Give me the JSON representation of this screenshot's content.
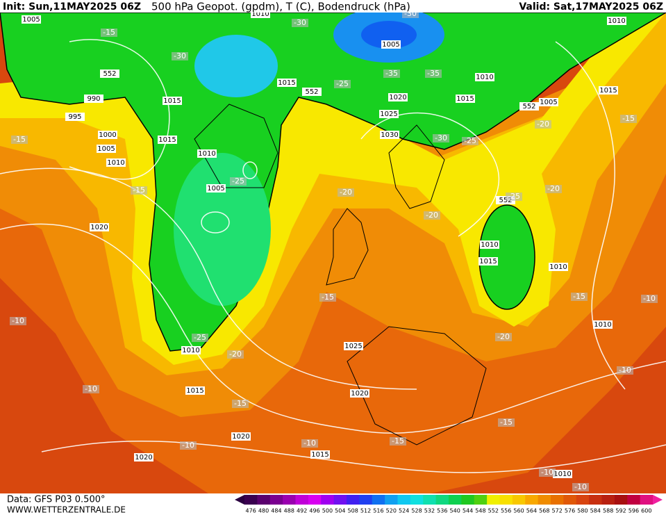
{
  "header": {
    "init": "Init: Sun,11MAY2025 06Z",
    "title": "500 hPa Geopot. (gpdm), T (C), Bodendruck (hPa)",
    "valid": "Valid: Sat,17MAY2025 06Z"
  },
  "footer": {
    "data": "Data: GFS P03 0.500°",
    "site": "WWW.WETTERZENTRALE.DE"
  },
  "colorbar": {
    "labels": [
      476,
      480,
      484,
      488,
      492,
      496,
      500,
      504,
      508,
      512,
      516,
      520,
      524,
      528,
      532,
      536,
      540,
      544,
      548,
      552,
      556,
      560,
      564,
      568,
      572,
      576,
      580,
      584,
      588,
      592,
      596,
      600
    ],
    "colors": [
      "#3a0050",
      "#5a006e",
      "#7a0090",
      "#9a00b0",
      "#c000d8",
      "#d800f0",
      "#a000f0",
      "#7010f0",
      "#4020f0",
      "#2040f0",
      "#1070f0",
      "#10a0f0",
      "#10c8f0",
      "#10e0e0",
      "#10e0b0",
      "#10d880",
      "#10d050",
      "#20c820",
      "#50d010",
      "#f0f000",
      "#f8e000",
      "#f8c800",
      "#f8a800",
      "#f08c00",
      "#e87000",
      "#e05808",
      "#d84410",
      "#c83010",
      "#b82010",
      "#a81010",
      "#c00040",
      "#e01080"
    ]
  },
  "map_labels": {
    "pressure": [
      "1005",
      "1010",
      "1010",
      "1005",
      "552",
      "990",
      "1015",
      "1015",
      "552",
      "1020",
      "1015",
      "1010",
      "1015",
      "1005",
      "552",
      "995",
      "1025",
      "1000",
      "1030",
      "1015",
      "1005",
      "1010",
      "1010",
      "1005",
      "552",
      "1020",
      "1010",
      "1015",
      "1010",
      "1010",
      "1025",
      "1010",
      "1015",
      "1020",
      "1020",
      "1020",
      "1015",
      "1010"
    ],
    "temperature": [
      "-15",
      "-30",
      "-30",
      "-30",
      "-35",
      "-35",
      "-25",
      "-15",
      "-30",
      "-25",
      "-25",
      "-20",
      "-20",
      "-25",
      "-20",
      "-15",
      "-20",
      "-15",
      "-15",
      "-15",
      "-10",
      "-10",
      "-25",
      "-20",
      "-20",
      "-10",
      "-15",
      "-10",
      "-15",
      "-15",
      "-10",
      "-10",
      "-10",
      "-10"
    ]
  }
}
